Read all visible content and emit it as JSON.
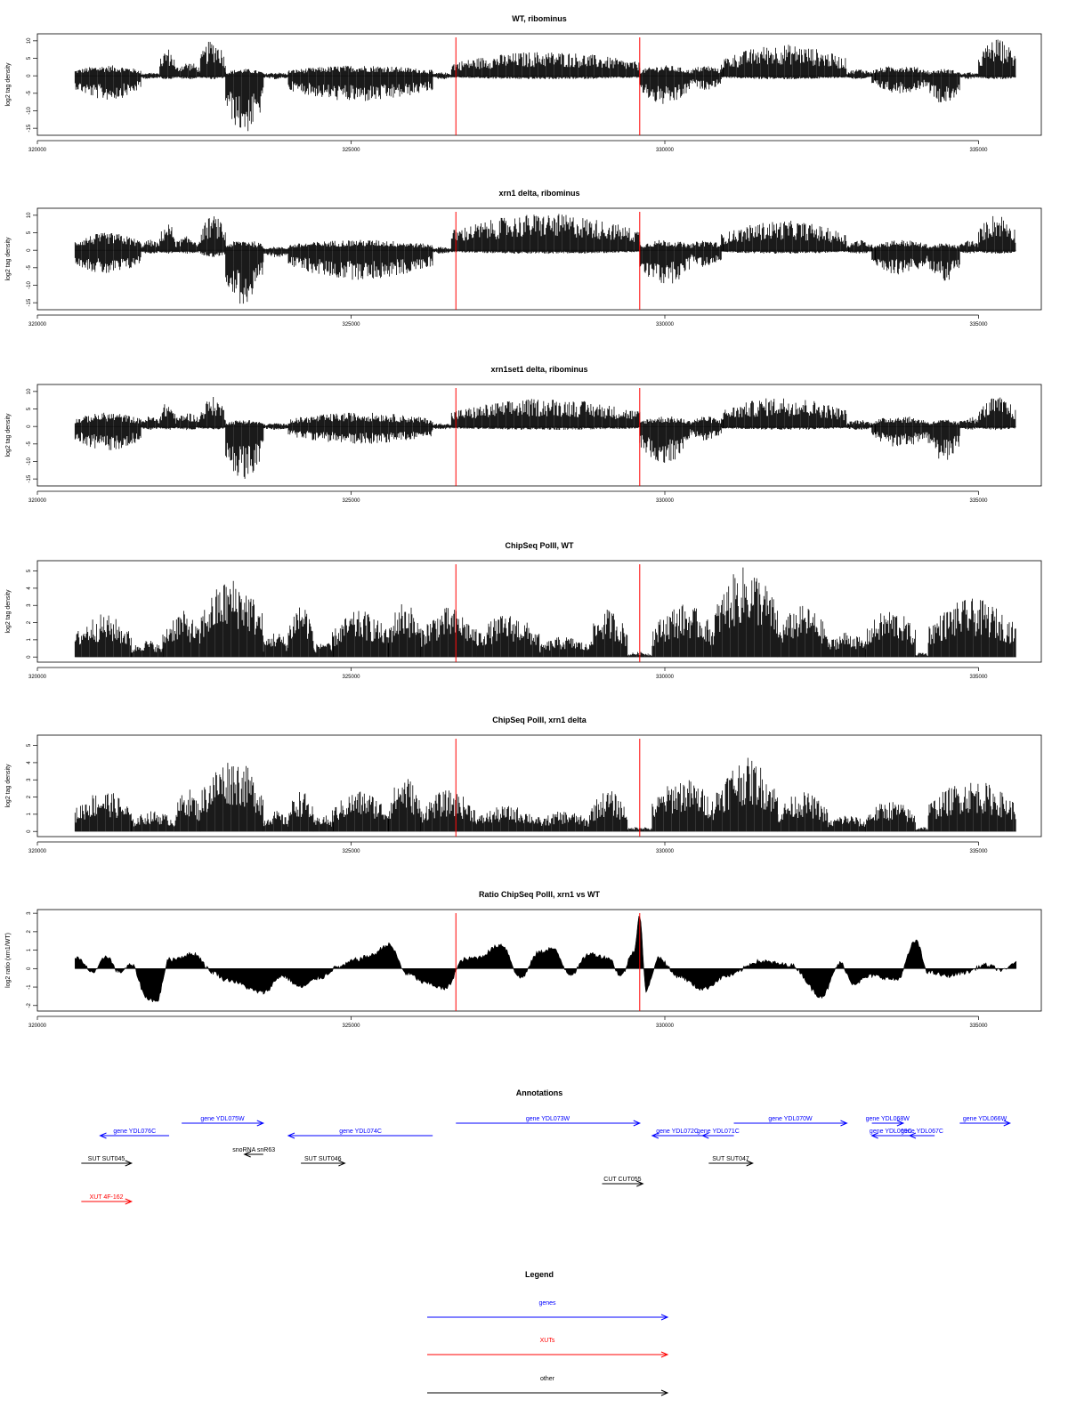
{
  "colors": {
    "genes": "#0000ff",
    "xuts": "#ff0000",
    "other": "#000000",
    "marker": "#ff0000",
    "bars": "#000000"
  },
  "x_axis": {
    "min": 320000,
    "max": 336000,
    "ticks": [
      320000,
      325000,
      330000,
      335000
    ]
  },
  "markers_x": [
    326670,
    329600
  ],
  "chart_data": [
    {
      "type": "bar",
      "title": "WT, ribominus",
      "ylabel": "log2 tag density",
      "ylim": [
        -17,
        12
      ],
      "yticks": [
        -15,
        -10,
        -5,
        0,
        5,
        10
      ],
      "data_range": [
        320600,
        335600
      ],
      "segments": [
        {
          "x": [
            320600,
            321650
          ],
          "min": -7,
          "max": 3
        },
        {
          "x": [
            321650,
            321950
          ],
          "min": -1,
          "max": 1
        },
        {
          "x": [
            321950,
            322200
          ],
          "min": -1,
          "max": 8
        },
        {
          "x": [
            322200,
            322600
          ],
          "min": -1,
          "max": 4
        },
        {
          "x": [
            322600,
            323000
          ],
          "min": -1,
          "max": 10.5
        },
        {
          "x": [
            323000,
            323600
          ],
          "min": -16.5,
          "max": 2
        },
        {
          "x": [
            323600,
            324000
          ],
          "min": -1,
          "max": 1
        },
        {
          "x": [
            324000,
            326300
          ],
          "min": -7.5,
          "max": 3
        },
        {
          "x": [
            326300,
            326600
          ],
          "min": -1,
          "max": 1
        },
        {
          "x": [
            326600,
            329600
          ],
          "min": -1,
          "max": 7
        },
        {
          "x": [
            329600,
            330400
          ],
          "min": -8.5,
          "max": 3
        },
        {
          "x": [
            330400,
            330900
          ],
          "min": -4,
          "max": 3
        },
        {
          "x": [
            330900,
            332900
          ],
          "min": -1,
          "max": 9
        },
        {
          "x": [
            332900,
            333300
          ],
          "min": -1,
          "max": 2
        },
        {
          "x": [
            333300,
            334200
          ],
          "min": -5,
          "max": 3
        },
        {
          "x": [
            334200,
            334700
          ],
          "min": -8,
          "max": 2
        },
        {
          "x": [
            334700,
            335000
          ],
          "min": -1,
          "max": 1
        },
        {
          "x": [
            335000,
            335600
          ],
          "min": -1,
          "max": 10.5
        }
      ]
    },
    {
      "type": "bar",
      "title": "xrn1 delta, ribominus",
      "ylabel": "log2 tag density",
      "ylim": [
        -17,
        12
      ],
      "yticks": [
        -15,
        -10,
        -5,
        0,
        5,
        10
      ],
      "data_range": [
        320600,
        335600
      ],
      "segments": [
        {
          "x": [
            320600,
            321650
          ],
          "min": -7,
          "max": 5
        },
        {
          "x": [
            321650,
            321950
          ],
          "min": -1,
          "max": 3
        },
        {
          "x": [
            321950,
            322200
          ],
          "min": -1,
          "max": 8
        },
        {
          "x": [
            322200,
            322600
          ],
          "min": -1,
          "max": 4
        },
        {
          "x": [
            322600,
            323000
          ],
          "min": -2,
          "max": 10
        },
        {
          "x": [
            323000,
            323600
          ],
          "min": -16,
          "max": 3
        },
        {
          "x": [
            323600,
            324000
          ],
          "min": -2,
          "max": 1
        },
        {
          "x": [
            324000,
            326300
          ],
          "min": -8.5,
          "max": 3
        },
        {
          "x": [
            326300,
            326600
          ],
          "min": -1,
          "max": 1
        },
        {
          "x": [
            326600,
            329600
          ],
          "min": -1,
          "max": 10.5
        },
        {
          "x": [
            329600,
            330400
          ],
          "min": -10,
          "max": 3
        },
        {
          "x": [
            330400,
            330900
          ],
          "min": -5,
          "max": 3
        },
        {
          "x": [
            330900,
            332900
          ],
          "min": -1,
          "max": 8.5
        },
        {
          "x": [
            332900,
            333300
          ],
          "min": -1,
          "max": 3
        },
        {
          "x": [
            333300,
            334200
          ],
          "min": -7,
          "max": 3
        },
        {
          "x": [
            334200,
            334700
          ],
          "min": -9,
          "max": 2
        },
        {
          "x": [
            334700,
            335000
          ],
          "min": -1,
          "max": 3
        },
        {
          "x": [
            335000,
            335600
          ],
          "min": -1,
          "max": 10.5
        }
      ]
    },
    {
      "type": "bar",
      "title": "xrn1set1 delta, ribominus",
      "ylabel": "log2 tag density",
      "ylim": [
        -17,
        12
      ],
      "yticks": [
        -15,
        -10,
        -5,
        0,
        5,
        10
      ],
      "data_range": [
        320600,
        335600
      ],
      "segments": [
        {
          "x": [
            320600,
            321650
          ],
          "min": -7,
          "max": 4
        },
        {
          "x": [
            321650,
            321950
          ],
          "min": -1,
          "max": 3
        },
        {
          "x": [
            321950,
            322200
          ],
          "min": -1,
          "max": 7
        },
        {
          "x": [
            322200,
            322600
          ],
          "min": -1,
          "max": 4
        },
        {
          "x": [
            322600,
            323000
          ],
          "min": -1,
          "max": 8.5
        },
        {
          "x": [
            323000,
            323600
          ],
          "min": -15.5,
          "max": 2
        },
        {
          "x": [
            323600,
            324000
          ],
          "min": -1,
          "max": 1
        },
        {
          "x": [
            324000,
            326300
          ],
          "min": -5,
          "max": 4
        },
        {
          "x": [
            326300,
            326600
          ],
          "min": -1,
          "max": 1
        },
        {
          "x": [
            326600,
            329600
          ],
          "min": -1,
          "max": 8
        },
        {
          "x": [
            329600,
            330400
          ],
          "min": -10.5,
          "max": 3
        },
        {
          "x": [
            330400,
            330900
          ],
          "min": -4,
          "max": 3
        },
        {
          "x": [
            330900,
            332900
          ],
          "min": -1,
          "max": 8.5
        },
        {
          "x": [
            332900,
            333300
          ],
          "min": -1,
          "max": 2
        },
        {
          "x": [
            333300,
            334200
          ],
          "min": -6,
          "max": 3
        },
        {
          "x": [
            334200,
            334700
          ],
          "min": -10,
          "max": 2
        },
        {
          "x": [
            334700,
            335000
          ],
          "min": -1,
          "max": 3
        },
        {
          "x": [
            335000,
            335600
          ],
          "min": -1,
          "max": 8.5
        }
      ]
    },
    {
      "type": "bar",
      "title": "ChipSeq PolII, WT",
      "ylabel": "log2 tag density",
      "ylim": [
        -0.3,
        5.6
      ],
      "yticks": [
        0,
        1,
        2,
        3,
        4,
        5
      ],
      "data_range": [
        320600,
        335600
      ],
      "segments": [
        {
          "x": [
            320600,
            321500
          ],
          "min": 0,
          "max": 2.5
        },
        {
          "x": [
            321500,
            322000
          ],
          "min": 0,
          "max": 1
        },
        {
          "x": [
            322000,
            322600
          ],
          "min": 0,
          "max": 2.7
        },
        {
          "x": [
            322600,
            323600
          ],
          "min": 0,
          "max": 4.6
        },
        {
          "x": [
            323600,
            324000
          ],
          "min": 0,
          "max": 1.5
        },
        {
          "x": [
            324000,
            324400
          ],
          "min": 0,
          "max": 3.3
        },
        {
          "x": [
            324400,
            324700
          ],
          "min": 0,
          "max": 1
        },
        {
          "x": [
            324700,
            325600
          ],
          "min": 0,
          "max": 2.7
        },
        {
          "x": [
            325600,
            326100
          ],
          "min": 0,
          "max": 3.3
        },
        {
          "x": [
            326100,
            327000
          ],
          "min": 0,
          "max": 2.9
        },
        {
          "x": [
            327000,
            328000
          ],
          "min": 0,
          "max": 2.5
        },
        {
          "x": [
            328000,
            328800
          ],
          "min": 0,
          "max": 1.2
        },
        {
          "x": [
            328800,
            329400
          ],
          "min": 0,
          "max": 2.8
        },
        {
          "x": [
            329400,
            329800
          ],
          "min": 0,
          "max": 0.3
        },
        {
          "x": [
            329800,
            330800
          ],
          "min": 0,
          "max": 3.1
        },
        {
          "x": [
            330800,
            331800
          ],
          "min": 0,
          "max": 5.3
        },
        {
          "x": [
            331800,
            332600
          ],
          "min": 0,
          "max": 3.0
        },
        {
          "x": [
            332600,
            333200
          ],
          "min": 0,
          "max": 1.5
        },
        {
          "x": [
            333200,
            334000
          ],
          "min": 0,
          "max": 2.8
        },
        {
          "x": [
            334000,
            334200
          ],
          "min": 0,
          "max": 0.3
        },
        {
          "x": [
            334200,
            335600
          ],
          "min": 0,
          "max": 3.4
        }
      ]
    },
    {
      "type": "bar",
      "title": "ChipSeq PolII, xrn1 delta",
      "ylabel": "log2 tag density",
      "ylim": [
        -0.3,
        5.6
      ],
      "yticks": [
        0,
        1,
        2,
        3,
        4,
        5
      ],
      "data_range": [
        320600,
        335600
      ],
      "segments": [
        {
          "x": [
            320600,
            321500
          ],
          "min": 0,
          "max": 2.4
        },
        {
          "x": [
            321500,
            322200
          ],
          "min": 0,
          "max": 1.2
        },
        {
          "x": [
            322200,
            322600
          ],
          "min": 0,
          "max": 2.5
        },
        {
          "x": [
            322600,
            323600
          ],
          "min": 0,
          "max": 4.3
        },
        {
          "x": [
            323600,
            324000
          ],
          "min": 0,
          "max": 1.2
        },
        {
          "x": [
            324000,
            324400
          ],
          "min": 0,
          "max": 2.4
        },
        {
          "x": [
            324400,
            324700
          ],
          "min": 0,
          "max": 1
        },
        {
          "x": [
            324700,
            325600
          ],
          "min": 0,
          "max": 2.4
        },
        {
          "x": [
            325600,
            326100
          ],
          "min": 0,
          "max": 3.3
        },
        {
          "x": [
            326100,
            327000
          ],
          "min": 0,
          "max": 2.4
        },
        {
          "x": [
            327000,
            328000
          ],
          "min": 0,
          "max": 1.5
        },
        {
          "x": [
            328000,
            328800
          ],
          "min": 0,
          "max": 1.2
        },
        {
          "x": [
            328800,
            329400
          ],
          "min": 0,
          "max": 2.4
        },
        {
          "x": [
            329400,
            329800
          ],
          "min": 0,
          "max": 0.3
        },
        {
          "x": [
            329800,
            330800
          ],
          "min": 0,
          "max": 3.1
        },
        {
          "x": [
            330800,
            331800
          ],
          "min": 0,
          "max": 4.3
        },
        {
          "x": [
            331800,
            332600
          ],
          "min": 0,
          "max": 2.3
        },
        {
          "x": [
            332600,
            333200
          ],
          "min": 0,
          "max": 1.0
        },
        {
          "x": [
            333200,
            334000
          ],
          "min": 0,
          "max": 1.8
        },
        {
          "x": [
            334000,
            334200
          ],
          "min": 0,
          "max": 0.3
        },
        {
          "x": [
            334200,
            335600
          ],
          "min": 0,
          "max": 3.0
        }
      ]
    },
    {
      "type": "area",
      "title": "Ratio ChipSeq PolII, xrn1 vs WT",
      "ylabel": "log2 ratio (xrn1/WT)",
      "ylim": [
        -2.3,
        3.2
      ],
      "yticks": [
        -2,
        -1,
        0,
        1,
        2,
        3
      ],
      "x": [
        320600,
        320900,
        321100,
        321300,
        321500,
        321750,
        321900,
        322100,
        322500,
        322800,
        323000,
        323600,
        323900,
        324200,
        324500,
        324800,
        325100,
        325300,
        325600,
        325900,
        326200,
        326500,
        326800,
        327000,
        327400,
        327700,
        328000,
        328200,
        328500,
        328800,
        329100,
        329300,
        329500,
        329600,
        329700,
        329900,
        330200,
        330600,
        331000,
        331500,
        332000,
        332500,
        332800,
        333000,
        333300,
        333700,
        334000,
        334200,
        334500,
        334800,
        335100,
        335400,
        335600
      ],
      "y": [
        0.6,
        -0.2,
        0.7,
        -0.2,
        0.2,
        -1.6,
        -1.8,
        0.5,
        0.8,
        -0.2,
        -0.6,
        -1.3,
        -0.4,
        -1.0,
        -0.5,
        0.1,
        0.5,
        0.7,
        1.3,
        -0.3,
        -0.8,
        -1.1,
        0.5,
        0.6,
        1.3,
        -0.5,
        0.9,
        1.1,
        -0.3,
        0.8,
        0.6,
        -0.4,
        0.9,
        2.9,
        -1.2,
        0.6,
        -0.4,
        -1.1,
        -0.4,
        0.4,
        0.2,
        -1.5,
        0.3,
        -0.8,
        -0.4,
        -0.6,
        1.5,
        -0.2,
        -0.4,
        -0.2,
        0.2,
        -0.1,
        0.4
      ]
    }
  ],
  "annotations_title": "Annotations",
  "annotations": [
    {
      "label": "gene YDL076C",
      "x_start": 321000,
      "x_end": 322100,
      "dir": "left",
      "type": "gene",
      "row": 1
    },
    {
      "label": "gene YDL075W",
      "x_start": 322300,
      "x_end": 323600,
      "dir": "right",
      "type": "gene",
      "row": 0
    },
    {
      "label": "gene YDL074C",
      "x_start": 324000,
      "x_end": 326300,
      "dir": "left",
      "type": "gene",
      "row": 1
    },
    {
      "label": "gene YDL073W",
      "x_start": 326670,
      "x_end": 329600,
      "dir": "right",
      "type": "gene",
      "row": 0
    },
    {
      "label": "gene YDL072C",
      "x_start": 329800,
      "x_end": 330600,
      "dir": "left",
      "type": "gene",
      "row": 1
    },
    {
      "label": "gene YDL071C",
      "x_start": 330600,
      "x_end": 331100,
      "dir": "left",
      "type": "gene",
      "row": 1
    },
    {
      "label": "gene YDL070W",
      "x_start": 331100,
      "x_end": 332900,
      "dir": "right",
      "type": "gene",
      "row": 0
    },
    {
      "label": "gene YDL068W",
      "x_start": 333300,
      "x_end": 333800,
      "dir": "right",
      "type": "gene",
      "row": 0
    },
    {
      "label": "gene YDL069C",
      "x_start": 333300,
      "x_end": 333900,
      "dir": "left",
      "type": "gene",
      "row": 1
    },
    {
      "label": "gene YDL067C",
      "x_start": 333900,
      "x_end": 334300,
      "dir": "left",
      "type": "gene",
      "row": 1
    },
    {
      "label": "gene YDL066W",
      "x_start": 334700,
      "x_end": 335500,
      "dir": "right",
      "type": "gene",
      "row": 0
    },
    {
      "label": "snoRNA snR63",
      "x_start": 323300,
      "x_end": 323600,
      "dir": "left",
      "type": "other",
      "row": 2
    },
    {
      "label": "SUT SUT045",
      "x_start": 320700,
      "x_end": 321500,
      "dir": "right",
      "type": "other",
      "row": 3
    },
    {
      "label": "SUT SUT046",
      "x_start": 324200,
      "x_end": 324900,
      "dir": "right",
      "type": "other",
      "row": 3
    },
    {
      "label": "SUT SUT047",
      "x_start": 330700,
      "x_end": 331400,
      "dir": "right",
      "type": "other",
      "row": 3
    },
    {
      "label": "CUT CUT055",
      "x_start": 329000,
      "x_end": 329650,
      "dir": "right",
      "type": "other",
      "row": 4
    },
    {
      "label": "XUT 4F-162",
      "x_start": 320700,
      "x_end": 321500,
      "dir": "right",
      "type": "xut",
      "row": 5
    }
  ],
  "legend_title": "Legend",
  "legend": [
    {
      "label": "genes",
      "type": "gene"
    },
    {
      "label": "XUTs",
      "type": "xut"
    },
    {
      "label": "other",
      "type": "other"
    }
  ]
}
